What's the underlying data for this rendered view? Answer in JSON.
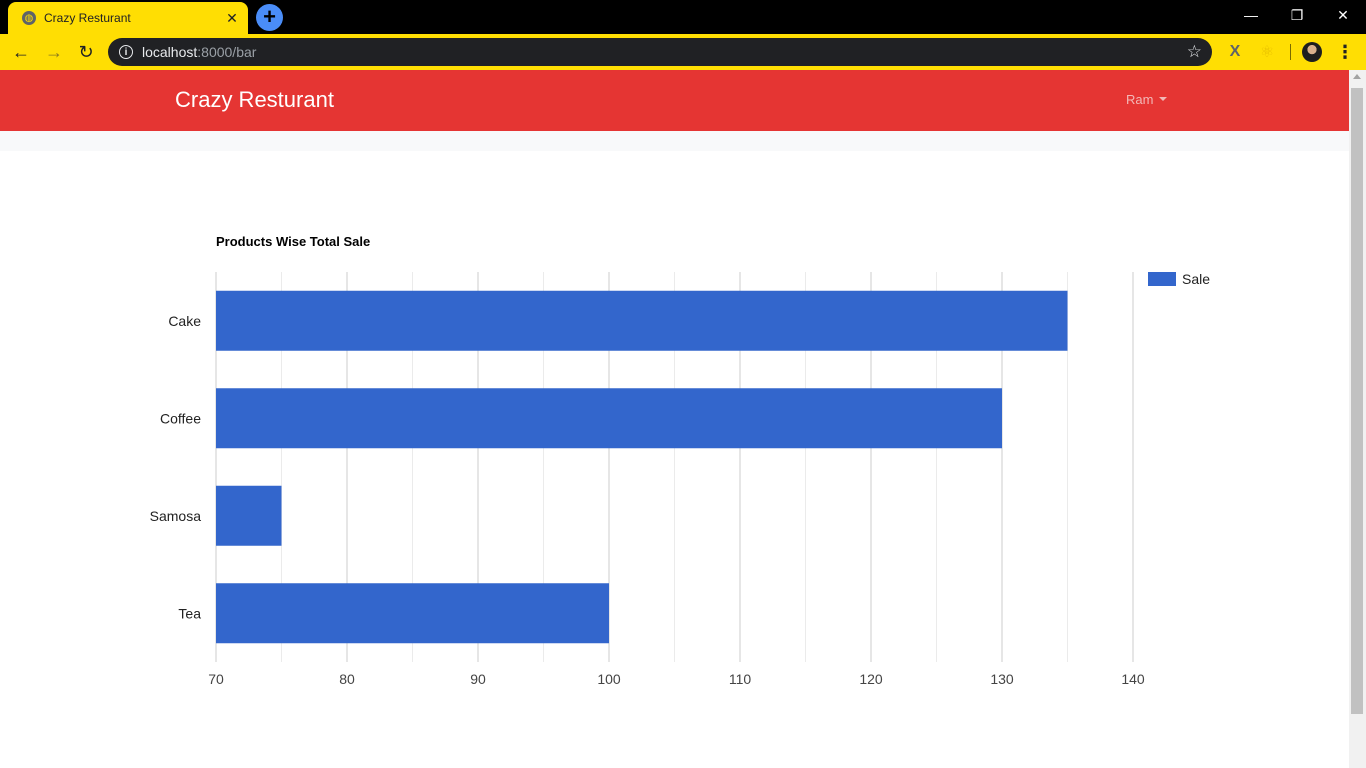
{
  "browser": {
    "tab_title": "Crazy Resturant",
    "tab_close": "✕",
    "new_tab": "+",
    "url_host": "localhost",
    "url_path": ":8000/bar",
    "window_controls": {
      "minimize": "—",
      "restore": "❐",
      "close": "✕"
    }
  },
  "navbar": {
    "brand": "Crazy Resturant",
    "user": "Ram"
  },
  "chart_data": {
    "type": "bar",
    "orientation": "horizontal",
    "title": "Products Wise Total Sale",
    "categories": [
      "Cake",
      "Coffee",
      "Samosa",
      "Tea"
    ],
    "series": [
      {
        "name": "Sale",
        "values": [
          135,
          130,
          75,
          100
        ],
        "color": "#3366cc"
      }
    ],
    "xlim": [
      70,
      140
    ],
    "xticks": [
      70,
      80,
      90,
      100,
      110,
      120,
      130,
      140
    ],
    "minor_grid_step": 5,
    "xlabel": "",
    "ylabel": "",
    "grid": true,
    "legend_position": "right"
  }
}
